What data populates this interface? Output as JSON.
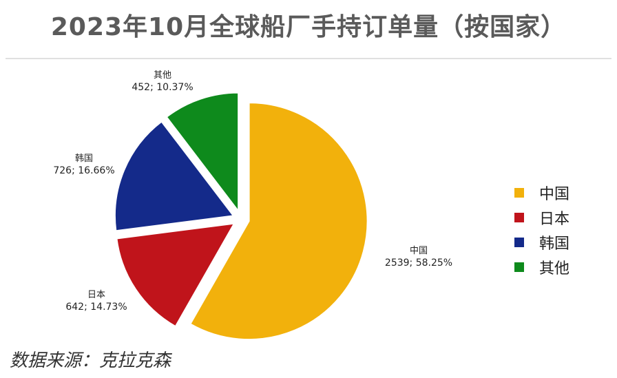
{
  "title": "2023年10月全球船厂手持订单量（按国家）",
  "source": "数据来源：克拉克森",
  "chart_data": {
    "type": "pie",
    "title": "2023年10月全球船厂手持订单量（按国家）",
    "slices": [
      {
        "name": "中国",
        "value": 2539,
        "percent": "58.25%",
        "label": "2539; 58.25%",
        "color": "#f2b10c"
      },
      {
        "name": "日本",
        "value": 642,
        "percent": "14.73%",
        "label": "642; 14.73%",
        "color": "#c0141b"
      },
      {
        "name": "韩国",
        "value": 726,
        "percent": "16.66%",
        "label": "726; 16.66%",
        "color": "#142a8a"
      },
      {
        "name": "其他",
        "value": 452,
        "percent": "10.37%",
        "label": "452; 10.37%",
        "color": "#0e8a1c"
      }
    ],
    "legend_position": "right",
    "exploded": true
  }
}
